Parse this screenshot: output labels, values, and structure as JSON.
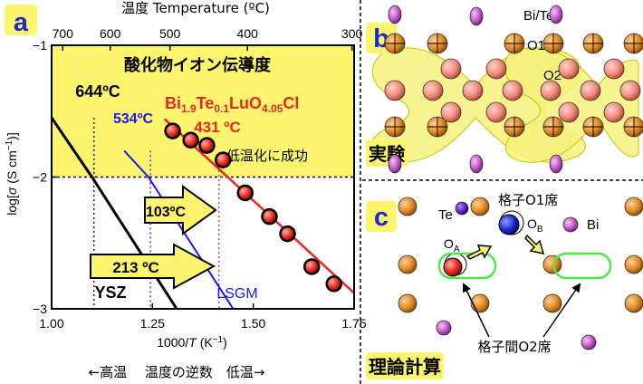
{
  "panels": {
    "a": {
      "letter": "a"
    },
    "b": {
      "letter": "b",
      "caption": "実験",
      "atom_label": "Bi/Te",
      "o1_label": "O1",
      "o2_label": "O2"
    },
    "c": {
      "letter": "c",
      "caption": "理論計算",
      "te_label": "Te",
      "bi_label": "Bi",
      "o1_site_label": "格子O1席",
      "o2_site_label": "格子間O2席",
      "oa_main": "O",
      "oa_sub": "A",
      "ob_main": "O",
      "ob_sub": "B"
    }
  },
  "chart_data": {
    "type": "scatter",
    "title": "酸化物イオン伝導度",
    "top_axis_label": "温度 Temperature (ºC)",
    "top_ticks": [
      "700",
      "600",
      "500",
      "400",
      "300"
    ],
    "top_tick_celsius": [
      700,
      600,
      500,
      400,
      300
    ],
    "xlabel_text": "1000/",
    "xlabel_var": "T",
    "xlabel_unit": " (K",
    "xlabel_exp": "−1",
    "xlabel_close": ")",
    "ylabel_pre": "log[",
    "ylabel_sigma": "σ",
    "ylabel_unit": " (S cm",
    "ylabel_exp": "−1",
    "ylabel_close": ")]",
    "bottom_note": "←高温　 温度の逆数　低温→",
    "xlim": [
      1.0,
      1.75
    ],
    "ylim": [
      -3,
      -1
    ],
    "x_ticks": [
      "1.00",
      "1.25",
      "1.50",
      "1.75"
    ],
    "y_ticks": [
      "−1",
      "−2",
      "−3"
    ],
    "highlight_region": {
      "y_from": -2,
      "y_to": -1,
      "color": "#fef56e"
    },
    "material_label_parts": [
      "Bi",
      "1.9",
      "Te",
      "0.1",
      "LuO",
      "4.05",
      "Cl"
    ],
    "label_644": "644ºC",
    "label_534": "534ºC",
    "label_431": "431 ºC",
    "success_note": "低温化に成功",
    "arrow_small_text": "103ºC",
    "arrow_big_text": "213 ºC",
    "series": [
      {
        "name": "YSZ",
        "color": "#000000",
        "x": [
          1.0,
          1.1,
          1.31
        ],
        "y": [
          -1.55,
          -2.0,
          -3.0
        ]
      },
      {
        "name": "LSGM",
        "color": "#1a1af0",
        "x": [
          1.18,
          1.24,
          1.45
        ],
        "y": [
          -1.8,
          -2.0,
          -3.0
        ]
      },
      {
        "name": "",
        "color": "#e8281e",
        "x": [
          1.3,
          1.345,
          1.385,
          1.425,
          1.48,
          1.54,
          1.585,
          1.645,
          1.7
        ],
        "y": [
          -1.65,
          -1.72,
          -1.76,
          -1.87,
          -2.12,
          -2.3,
          -2.43,
          -2.68,
          -2.81
        ]
      }
    ],
    "red_fit": {
      "x": [
        1.28,
        1.75
      ],
      "y": [
        -1.56,
        -2.88
      ]
    },
    "vlines": [
      {
        "x": 1.105,
        "y_top": -1.55,
        "color": "#000000"
      },
      {
        "x": 1.245,
        "y_top": -1.8,
        "color": "#1a1af0"
      },
      {
        "x": 1.415,
        "y_top": -1.88,
        "color": "#e8281e"
      }
    ]
  },
  "colors": {
    "gold": "#d4801c",
    "purple": "#c455c9",
    "red": "#e8281e",
    "blue": "#1a2acc",
    "green": "#4ee84e",
    "yellow_box": "#fef56e"
  }
}
